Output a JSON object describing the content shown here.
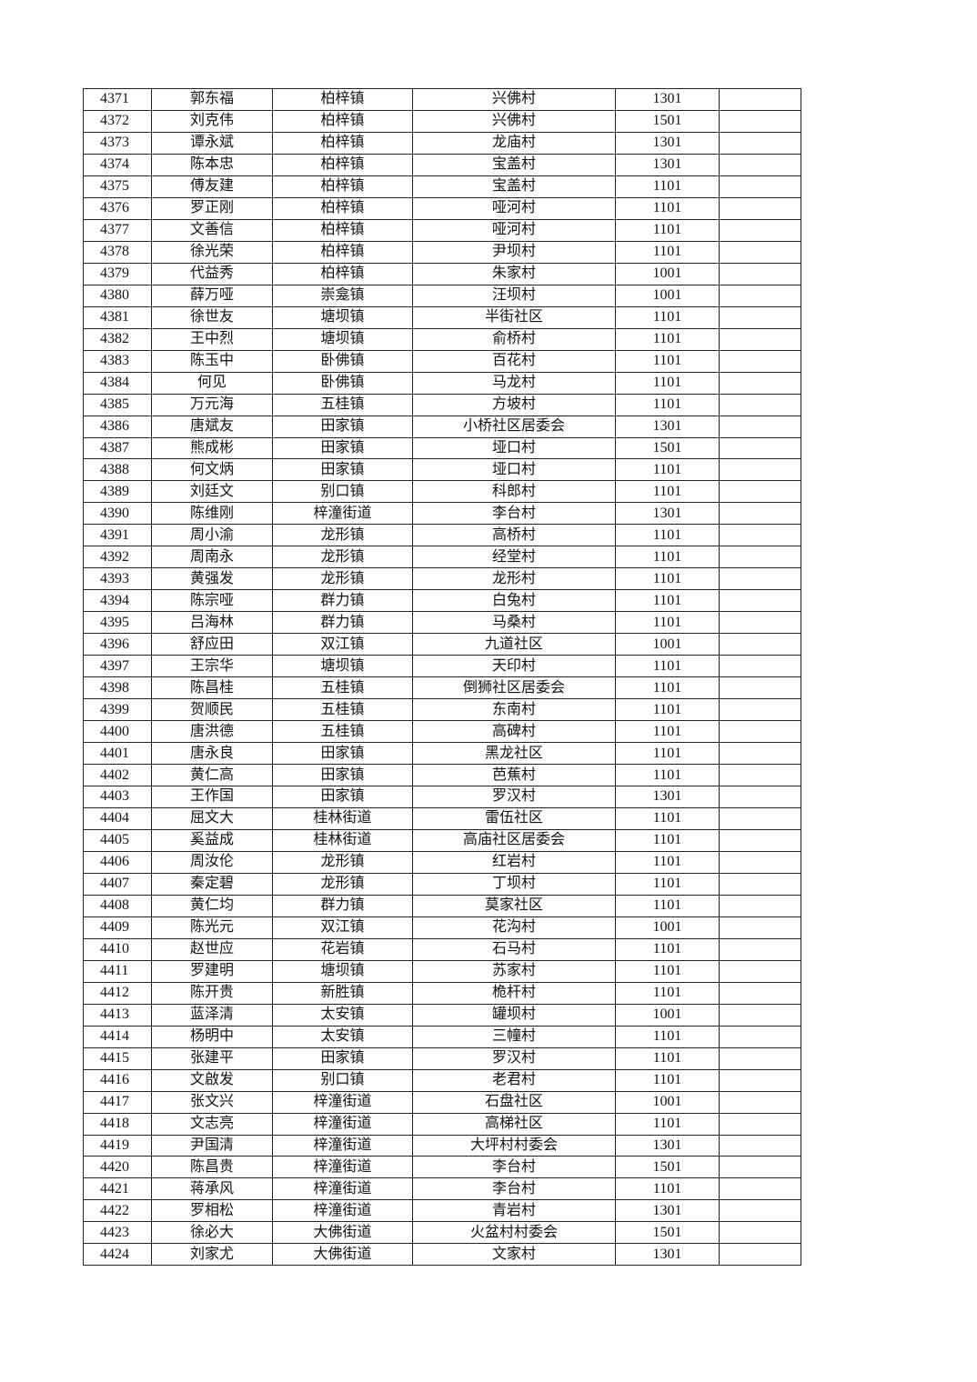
{
  "table": {
    "rows": [
      [
        "4371",
        "郭东福",
        "柏梓镇",
        "兴佛村",
        "1301",
        ""
      ],
      [
        "4372",
        "刘克伟",
        "柏梓镇",
        "兴佛村",
        "1501",
        ""
      ],
      [
        "4373",
        "谭永斌",
        "柏梓镇",
        "龙庙村",
        "1301",
        ""
      ],
      [
        "4374",
        "陈本忠",
        "柏梓镇",
        "宝盖村",
        "1301",
        ""
      ],
      [
        "4375",
        "傅友建",
        "柏梓镇",
        "宝盖村",
        "1101",
        ""
      ],
      [
        "4376",
        "罗正刚",
        "柏梓镇",
        "哑河村",
        "1101",
        ""
      ],
      [
        "4377",
        "文善信",
        "柏梓镇",
        "哑河村",
        "1101",
        ""
      ],
      [
        "4378",
        "徐光荣",
        "柏梓镇",
        "尹坝村",
        "1101",
        ""
      ],
      [
        "4379",
        "代益秀",
        "柏梓镇",
        "朱家村",
        "1001",
        ""
      ],
      [
        "4380",
        "薛万哑",
        "崇龛镇",
        "汪坝村",
        "1001",
        ""
      ],
      [
        "4381",
        "徐世友",
        "塘坝镇",
        "半街社区",
        "1101",
        ""
      ],
      [
        "4382",
        "王中烈",
        "塘坝镇",
        "俞桥村",
        "1101",
        ""
      ],
      [
        "4383",
        "陈玉中",
        "卧佛镇",
        "百花村",
        "1101",
        ""
      ],
      [
        "4384",
        "何见",
        "卧佛镇",
        "马龙村",
        "1101",
        ""
      ],
      [
        "4385",
        "万元海",
        "五桂镇",
        "方坡村",
        "1101",
        ""
      ],
      [
        "4386",
        "唐斌友",
        "田家镇",
        "小桥社区居委会",
        "1301",
        ""
      ],
      [
        "4387",
        "熊成彬",
        "田家镇",
        "垭口村",
        "1501",
        ""
      ],
      [
        "4388",
        "何文炳",
        "田家镇",
        "垭口村",
        "1101",
        ""
      ],
      [
        "4389",
        "刘廷文",
        "别口镇",
        "科郎村",
        "1101",
        ""
      ],
      [
        "4390",
        "陈维刚",
        "梓潼街道",
        "李台村",
        "1301",
        ""
      ],
      [
        "4391",
        "周小渝",
        "龙形镇",
        "高桥村",
        "1101",
        ""
      ],
      [
        "4392",
        "周南永",
        "龙形镇",
        "经堂村",
        "1101",
        ""
      ],
      [
        "4393",
        "黄强发",
        "龙形镇",
        "龙形村",
        "1101",
        ""
      ],
      [
        "4394",
        "陈宗哑",
        "群力镇",
        "白兔村",
        "1101",
        ""
      ],
      [
        "4395",
        "吕海林",
        "群力镇",
        "马桑村",
        "1101",
        ""
      ],
      [
        "4396",
        "舒应田",
        "双江镇",
        "九道社区",
        "1001",
        ""
      ],
      [
        "4397",
        "王宗华",
        "塘坝镇",
        "天印村",
        "1101",
        ""
      ],
      [
        "4398",
        "陈昌桂",
        "五桂镇",
        "倒狮社区居委会",
        "1101",
        ""
      ],
      [
        "4399",
        "贺顺民",
        "五桂镇",
        "东南村",
        "1101",
        ""
      ],
      [
        "4400",
        "唐洪德",
        "五桂镇",
        "高碑村",
        "1101",
        ""
      ],
      [
        "4401",
        "唐永良",
        "田家镇",
        "黑龙社区",
        "1101",
        ""
      ],
      [
        "4402",
        "黄仁高",
        "田家镇",
        "芭蕉村",
        "1101",
        ""
      ],
      [
        "4403",
        "王作国",
        "田家镇",
        "罗汉村",
        "1301",
        ""
      ],
      [
        "4404",
        "屈文大",
        "桂林街道",
        "雷伍社区",
        "1101",
        ""
      ],
      [
        "4405",
        "奚益成",
        "桂林街道",
        "高庙社区居委会",
        "1101",
        ""
      ],
      [
        "4406",
        "周汝伦",
        "龙形镇",
        "红岩村",
        "1101",
        ""
      ],
      [
        "4407",
        "秦定碧",
        "龙形镇",
        "丁坝村",
        "1101",
        ""
      ],
      [
        "4408",
        "黄仁均",
        "群力镇",
        "莫家社区",
        "1101",
        ""
      ],
      [
        "4409",
        "陈光元",
        "双江镇",
        "花沟村",
        "1001",
        ""
      ],
      [
        "4410",
        "赵世应",
        "花岩镇",
        "石马村",
        "1101",
        ""
      ],
      [
        "4411",
        "罗建明",
        "塘坝镇",
        "苏家村",
        "1101",
        ""
      ],
      [
        "4412",
        "陈开贵",
        "新胜镇",
        "桅杆村",
        "1101",
        ""
      ],
      [
        "4413",
        "蓝泽清",
        "太安镇",
        "罐坝村",
        "1001",
        ""
      ],
      [
        "4414",
        "杨明中",
        "太安镇",
        "三幢村",
        "1101",
        ""
      ],
      [
        "4415",
        "张建平",
        "田家镇",
        "罗汉村",
        "1101",
        ""
      ],
      [
        "4416",
        "文啟发",
        "别口镇",
        "老君村",
        "1101",
        ""
      ],
      [
        "4417",
        "张文兴",
        "梓潼街道",
        "石盘社区",
        "1001",
        ""
      ],
      [
        "4418",
        "文志亮",
        "梓潼街道",
        "高梯社区",
        "1101",
        ""
      ],
      [
        "4419",
        "尹国清",
        "梓潼街道",
        "大坪村村委会",
        "1301",
        ""
      ],
      [
        "4420",
        "陈昌贵",
        "梓潼街道",
        "李台村",
        "1501",
        ""
      ],
      [
        "4421",
        "蒋承风",
        "梓潼街道",
        "李台村",
        "1101",
        ""
      ],
      [
        "4422",
        "罗相松",
        "梓潼街道",
        "青岩村",
        "1301",
        ""
      ],
      [
        "4423",
        "徐必大",
        "大佛街道",
        "火盆村村委会",
        "1501",
        ""
      ],
      [
        "4424",
        "刘家尤",
        "大佛街道",
        "文家村",
        "1301",
        ""
      ]
    ]
  }
}
